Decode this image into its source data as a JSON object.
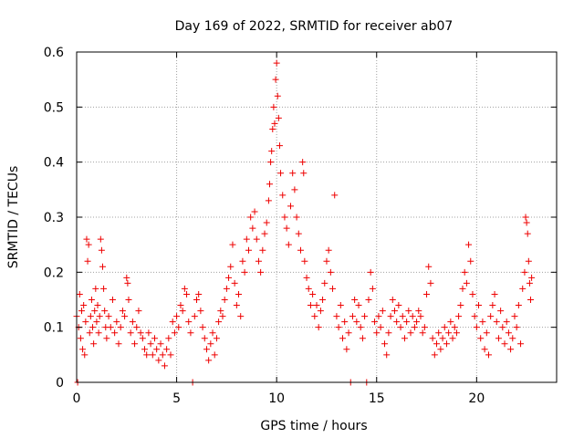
{
  "chart_data": {
    "type": "scatter",
    "title": "Day 169 of 2022, SRMTID for receiver ab07",
    "xlabel": "GPS time / hours",
    "ylabel": "SRMTID / TECUs",
    "xlim": [
      0,
      24
    ],
    "ylim": [
      0,
      0.6
    ],
    "xticks": [
      0,
      5,
      10,
      15,
      20
    ],
    "yticks": [
      0,
      0.1,
      0.2,
      0.3,
      0.4,
      0.5,
      0.6
    ],
    "xtick_labels": [
      "0",
      "5",
      "10",
      "15",
      "20"
    ],
    "ytick_labels": [
      "0",
      "0.1",
      "0.2",
      "0.3",
      "0.4",
      "0.5",
      "0.6"
    ],
    "grid": true,
    "marker": "+",
    "marker_color": "#ee0000",
    "series": [
      {
        "name": "SRMTID",
        "points": [
          [
            0.0,
            0.12
          ],
          [
            0.05,
            0.0
          ],
          [
            0.1,
            0.1
          ],
          [
            0.15,
            0.16
          ],
          [
            0.2,
            0.08
          ],
          [
            0.25,
            0.13
          ],
          [
            0.3,
            0.06
          ],
          [
            0.35,
            0.14
          ],
          [
            0.4,
            0.05
          ],
          [
            0.45,
            0.11
          ],
          [
            0.5,
            0.26
          ],
          [
            0.55,
            0.22
          ],
          [
            0.6,
            0.25
          ],
          [
            0.65,
            0.09
          ],
          [
            0.7,
            0.12
          ],
          [
            0.75,
            0.15
          ],
          [
            0.8,
            0.1
          ],
          [
            0.85,
            0.07
          ],
          [
            0.9,
            0.13
          ],
          [
            0.95,
            0.17
          ],
          [
            1.0,
            0.11
          ],
          [
            1.05,
            0.14
          ],
          [
            1.1,
            0.09
          ],
          [
            1.15,
            0.12
          ],
          [
            1.2,
            0.26
          ],
          [
            1.25,
            0.24
          ],
          [
            1.3,
            0.21
          ],
          [
            1.35,
            0.17
          ],
          [
            1.4,
            0.13
          ],
          [
            1.45,
            0.1
          ],
          [
            1.5,
            0.08
          ],
          [
            1.6,
            0.12
          ],
          [
            1.7,
            0.1
          ],
          [
            1.8,
            0.15
          ],
          [
            1.9,
            0.09
          ],
          [
            2.0,
            0.11
          ],
          [
            2.1,
            0.07
          ],
          [
            2.2,
            0.1
          ],
          [
            2.3,
            0.13
          ],
          [
            2.4,
            0.12
          ],
          [
            2.5,
            0.19
          ],
          [
            2.55,
            0.18
          ],
          [
            2.6,
            0.15
          ],
          [
            2.7,
            0.09
          ],
          [
            2.8,
            0.11
          ],
          [
            2.9,
            0.07
          ],
          [
            3.0,
            0.1
          ],
          [
            3.1,
            0.13
          ],
          [
            3.2,
            0.09
          ],
          [
            3.3,
            0.08
          ],
          [
            3.4,
            0.06
          ],
          [
            3.5,
            0.05
          ],
          [
            3.6,
            0.09
          ],
          [
            3.7,
            0.07
          ],
          [
            3.8,
            0.05
          ],
          [
            3.9,
            0.08
          ],
          [
            4.0,
            0.06
          ],
          [
            4.1,
            0.04
          ],
          [
            4.2,
            0.07
          ],
          [
            4.3,
            0.05
          ],
          [
            4.4,
            0.03
          ],
          [
            4.5,
            0.06
          ],
          [
            4.6,
            0.08
          ],
          [
            4.7,
            0.05
          ],
          [
            4.8,
            0.11
          ],
          [
            4.9,
            0.09
          ],
          [
            5.0,
            0.12
          ],
          [
            5.1,
            0.1
          ],
          [
            5.2,
            0.14
          ],
          [
            5.3,
            0.13
          ],
          [
            5.4,
            0.17
          ],
          [
            5.5,
            0.16
          ],
          [
            5.6,
            0.11
          ],
          [
            5.7,
            0.09
          ],
          [
            5.8,
            0.0
          ],
          [
            5.9,
            0.12
          ],
          [
            6.0,
            0.15
          ],
          [
            6.1,
            0.16
          ],
          [
            6.2,
            0.13
          ],
          [
            6.3,
            0.1
          ],
          [
            6.4,
            0.08
          ],
          [
            6.5,
            0.06
          ],
          [
            6.6,
            0.04
          ],
          [
            6.7,
            0.07
          ],
          [
            6.8,
            0.09
          ],
          [
            6.9,
            0.05
          ],
          [
            7.0,
            0.08
          ],
          [
            7.1,
            0.11
          ],
          [
            7.2,
            0.13
          ],
          [
            7.3,
            0.12
          ],
          [
            7.4,
            0.15
          ],
          [
            7.5,
            0.17
          ],
          [
            7.6,
            0.19
          ],
          [
            7.7,
            0.21
          ],
          [
            7.8,
            0.25
          ],
          [
            7.9,
            0.18
          ],
          [
            8.0,
            0.14
          ],
          [
            8.1,
            0.16
          ],
          [
            8.2,
            0.12
          ],
          [
            8.3,
            0.22
          ],
          [
            8.4,
            0.2
          ],
          [
            8.5,
            0.26
          ],
          [
            8.6,
            0.24
          ],
          [
            8.7,
            0.3
          ],
          [
            8.8,
            0.28
          ],
          [
            8.9,
            0.31
          ],
          [
            9.0,
            0.26
          ],
          [
            9.1,
            0.22
          ],
          [
            9.2,
            0.2
          ],
          [
            9.3,
            0.24
          ],
          [
            9.4,
            0.27
          ],
          [
            9.5,
            0.29
          ],
          [
            9.6,
            0.33
          ],
          [
            9.65,
            0.36
          ],
          [
            9.7,
            0.4
          ],
          [
            9.75,
            0.42
          ],
          [
            9.8,
            0.46
          ],
          [
            9.85,
            0.5
          ],
          [
            9.9,
            0.47
          ],
          [
            9.95,
            0.55
          ],
          [
            10.0,
            0.58
          ],
          [
            10.05,
            0.52
          ],
          [
            10.1,
            0.48
          ],
          [
            10.15,
            0.43
          ],
          [
            10.2,
            0.38
          ],
          [
            10.3,
            0.34
          ],
          [
            10.4,
            0.3
          ],
          [
            10.5,
            0.28
          ],
          [
            10.6,
            0.25
          ],
          [
            10.7,
            0.32
          ],
          [
            10.8,
            0.38
          ],
          [
            10.9,
            0.35
          ],
          [
            11.0,
            0.3
          ],
          [
            11.1,
            0.27
          ],
          [
            11.2,
            0.24
          ],
          [
            11.3,
            0.4
          ],
          [
            11.35,
            0.38
          ],
          [
            11.4,
            0.22
          ],
          [
            11.5,
            0.19
          ],
          [
            11.6,
            0.17
          ],
          [
            11.7,
            0.14
          ],
          [
            11.8,
            0.16
          ],
          [
            11.9,
            0.12
          ],
          [
            12.0,
            0.14
          ],
          [
            12.1,
            0.1
          ],
          [
            12.2,
            0.13
          ],
          [
            12.3,
            0.15
          ],
          [
            12.4,
            0.18
          ],
          [
            12.5,
            0.22
          ],
          [
            12.6,
            0.24
          ],
          [
            12.7,
            0.2
          ],
          [
            12.8,
            0.17
          ],
          [
            12.9,
            0.34
          ],
          [
            13.0,
            0.12
          ],
          [
            13.1,
            0.1
          ],
          [
            13.2,
            0.14
          ],
          [
            13.3,
            0.08
          ],
          [
            13.4,
            0.11
          ],
          [
            13.5,
            0.06
          ],
          [
            13.6,
            0.09
          ],
          [
            13.7,
            0.0
          ],
          [
            13.8,
            0.12
          ],
          [
            13.9,
            0.15
          ],
          [
            14.0,
            0.11
          ],
          [
            14.1,
            0.14
          ],
          [
            14.2,
            0.1
          ],
          [
            14.3,
            0.08
          ],
          [
            14.4,
            0.12
          ],
          [
            14.5,
            0.0
          ],
          [
            14.6,
            0.15
          ],
          [
            14.7,
            0.2
          ],
          [
            14.8,
            0.17
          ],
          [
            14.9,
            0.11
          ],
          [
            15.0,
            0.09
          ],
          [
            15.1,
            0.12
          ],
          [
            15.2,
            0.1
          ],
          [
            15.3,
            0.13
          ],
          [
            15.4,
            0.07
          ],
          [
            15.5,
            0.05
          ],
          [
            15.6,
            0.09
          ],
          [
            15.7,
            0.12
          ],
          [
            15.8,
            0.15
          ],
          [
            15.9,
            0.13
          ],
          [
            16.0,
            0.11
          ],
          [
            16.1,
            0.14
          ],
          [
            16.2,
            0.1
          ],
          [
            16.3,
            0.12
          ],
          [
            16.4,
            0.08
          ],
          [
            16.5,
            0.11
          ],
          [
            16.6,
            0.13
          ],
          [
            16.7,
            0.09
          ],
          [
            16.8,
            0.12
          ],
          [
            16.9,
            0.1
          ],
          [
            17.0,
            0.11
          ],
          [
            17.1,
            0.13
          ],
          [
            17.2,
            0.12
          ],
          [
            17.3,
            0.09
          ],
          [
            17.4,
            0.1
          ],
          [
            17.5,
            0.16
          ],
          [
            17.6,
            0.21
          ],
          [
            17.7,
            0.18
          ],
          [
            17.8,
            0.08
          ],
          [
            17.9,
            0.05
          ],
          [
            18.0,
            0.07
          ],
          [
            18.1,
            0.09
          ],
          [
            18.2,
            0.06
          ],
          [
            18.3,
            0.08
          ],
          [
            18.4,
            0.1
          ],
          [
            18.5,
            0.07
          ],
          [
            18.6,
            0.09
          ],
          [
            18.7,
            0.11
          ],
          [
            18.8,
            0.08
          ],
          [
            18.9,
            0.1
          ],
          [
            19.0,
            0.09
          ],
          [
            19.1,
            0.12
          ],
          [
            19.2,
            0.14
          ],
          [
            19.3,
            0.17
          ],
          [
            19.4,
            0.2
          ],
          [
            19.5,
            0.18
          ],
          [
            19.6,
            0.25
          ],
          [
            19.7,
            0.22
          ],
          [
            19.8,
            0.16
          ],
          [
            19.9,
            0.12
          ],
          [
            20.0,
            0.1
          ],
          [
            20.1,
            0.14
          ],
          [
            20.2,
            0.08
          ],
          [
            20.3,
            0.11
          ],
          [
            20.4,
            0.06
          ],
          [
            20.5,
            0.09
          ],
          [
            20.6,
            0.05
          ],
          [
            20.7,
            0.12
          ],
          [
            20.8,
            0.14
          ],
          [
            20.9,
            0.16
          ],
          [
            21.0,
            0.11
          ],
          [
            21.1,
            0.08
          ],
          [
            21.2,
            0.13
          ],
          [
            21.3,
            0.1
          ],
          [
            21.4,
            0.07
          ],
          [
            21.5,
            0.11
          ],
          [
            21.6,
            0.09
          ],
          [
            21.7,
            0.06
          ],
          [
            21.8,
            0.08
          ],
          [
            21.9,
            0.12
          ],
          [
            22.0,
            0.1
          ],
          [
            22.1,
            0.14
          ],
          [
            22.2,
            0.07
          ],
          [
            22.3,
            0.17
          ],
          [
            22.4,
            0.2
          ],
          [
            22.45,
            0.3
          ],
          [
            22.5,
            0.29
          ],
          [
            22.55,
            0.27
          ],
          [
            22.6,
            0.22
          ],
          [
            22.65,
            0.18
          ],
          [
            22.7,
            0.15
          ],
          [
            22.75,
            0.19
          ]
        ]
      }
    ]
  }
}
